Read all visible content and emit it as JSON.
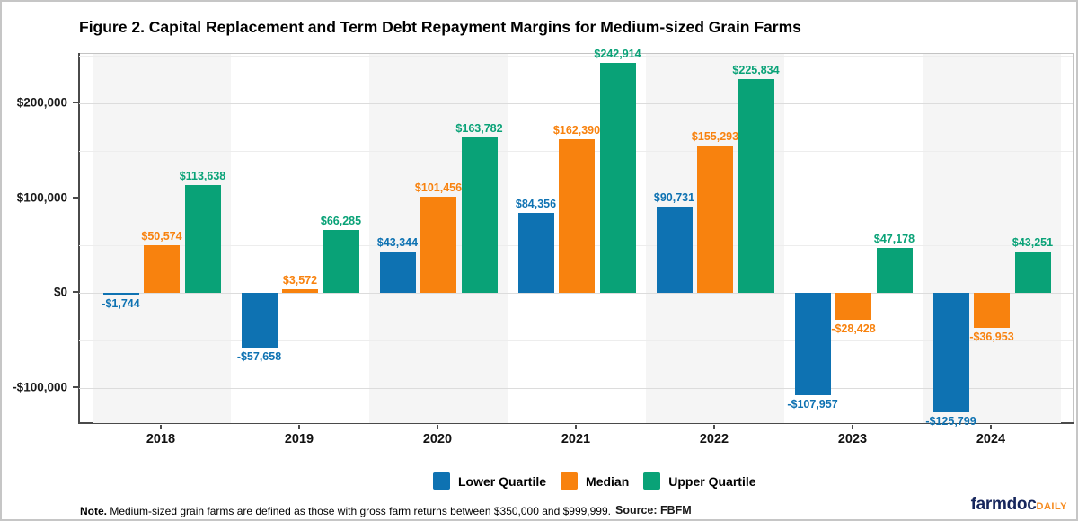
{
  "title": "Figure 2. Capital Replacement and Term Debt Repayment Margins for Medium-sized Grain Farms",
  "chart_data": {
    "type": "bar",
    "categories": [
      "2018",
      "2019",
      "2020",
      "2021",
      "2022",
      "2023",
      "2024"
    ],
    "series": [
      {
        "name": "Lower Quartile",
        "color": "#0e72b2",
        "values": [
          -1744,
          -57658,
          43344,
          84356,
          90731,
          -107957,
          -125799
        ]
      },
      {
        "name": "Median",
        "color": "#f8820e",
        "values": [
          50574,
          3572,
          101456,
          162390,
          155293,
          -28428,
          -36953
        ]
      },
      {
        "name": "Upper Quartile",
        "color": "#09a277",
        "values": [
          113638,
          66285,
          163782,
          242914,
          225834,
          47178,
          43251
        ]
      }
    ],
    "y_ticks": [
      {
        "value": 200000,
        "label": "$200,000"
      },
      {
        "value": 100000,
        "label": "$100,000"
      },
      {
        "value": 0,
        "label": "$0"
      },
      {
        "value": -100000,
        "label": "-$100,000"
      }
    ],
    "ylim": [
      -139000,
      252000
    ],
    "grid_step": 50000,
    "grid": true,
    "band_colors": [
      "#f5f5f5",
      "#ffffff"
    ],
    "legend_position": "bottom",
    "value_label_format": "currency"
  },
  "footer": {
    "note_bold": "Note.",
    "note_text": " Medium-sized grain farms are defined as those with gross farm returns between $350,000 and $999,999.",
    "source": "Source: FBFM",
    "logo": {
      "farmdoc": "farmdoc",
      "daily": "DAILY",
      "farmdoc_color": "#16265c",
      "daily_color": "#f68b1f"
    }
  }
}
